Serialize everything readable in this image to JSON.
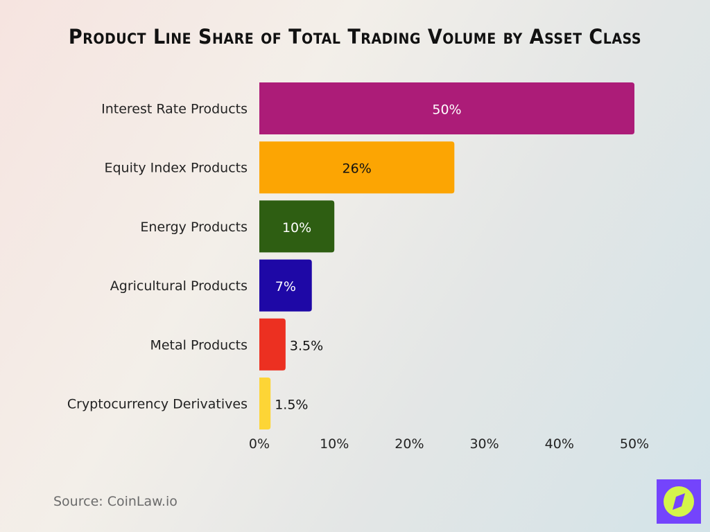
{
  "chart_data": {
    "type": "bar",
    "orientation": "horizontal",
    "title": "Product Line Share of Total Trading Volume by Asset Class",
    "categories": [
      "Interest Rate Products",
      "Equity Index Products",
      "Energy Products",
      "Agricultural Products",
      "Metal Products",
      "Cryptocurrency Derivatives"
    ],
    "values": [
      50,
      26,
      10,
      7,
      3.5,
      1.5
    ],
    "data_labels": [
      "50%",
      "26%",
      "10%",
      "7%",
      "3.5%",
      "1.5%"
    ],
    "colors": [
      "#ac1c78",
      "#fca503",
      "#2e5e12",
      "#1e08a6",
      "#ec3021",
      "#fdd536"
    ],
    "label_colors": [
      "#ffffff",
      "#111111",
      "#ffffff",
      "#ffffff",
      "#111111",
      "#111111"
    ],
    "xlim": [
      0,
      50
    ],
    "xticks": [
      "0%",
      "10%",
      "20%",
      "30%",
      "40%",
      "50%"
    ],
    "grid": false,
    "xlabel": "",
    "ylabel": ""
  },
  "source": "Source: CoinLaw.io",
  "logo": {
    "icon": "compass-icon",
    "bg": "#7444fc",
    "fg": "#d4f54a"
  }
}
